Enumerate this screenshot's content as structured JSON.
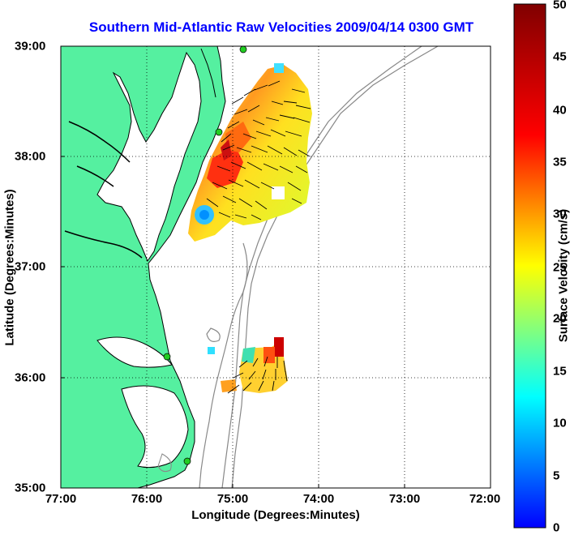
{
  "title": "Southern Mid-Atlantic Raw Velocities 2009/04/14 0300 GMT",
  "axes": {
    "xlabel": "Longitude (Degrees:Minutes)",
    "ylabel": "Latitude (Degrees:Minutes)",
    "x_ticks": [
      "77:00",
      "76:00",
      "75:00",
      "74:00",
      "73:00",
      "72:00"
    ],
    "y_ticks": [
      "39:00",
      "38:00",
      "37:00",
      "36:00",
      "35:00"
    ],
    "grid": "dotted"
  },
  "colorbar": {
    "label": "Surface Velocity (cm/s)",
    "ticks": [
      "50",
      "45",
      "40",
      "35",
      "30",
      "25",
      "20",
      "15",
      "10",
      "5",
      "0"
    ],
    "range": [
      0,
      50
    ],
    "colormap": "jet"
  },
  "colors": {
    "land": "#55f0a0",
    "title": "#0000ff",
    "bathymetry": "#888888",
    "station": "#22cc22"
  },
  "stations": [
    "station-1",
    "station-2",
    "station-3",
    "station-4"
  ]
}
